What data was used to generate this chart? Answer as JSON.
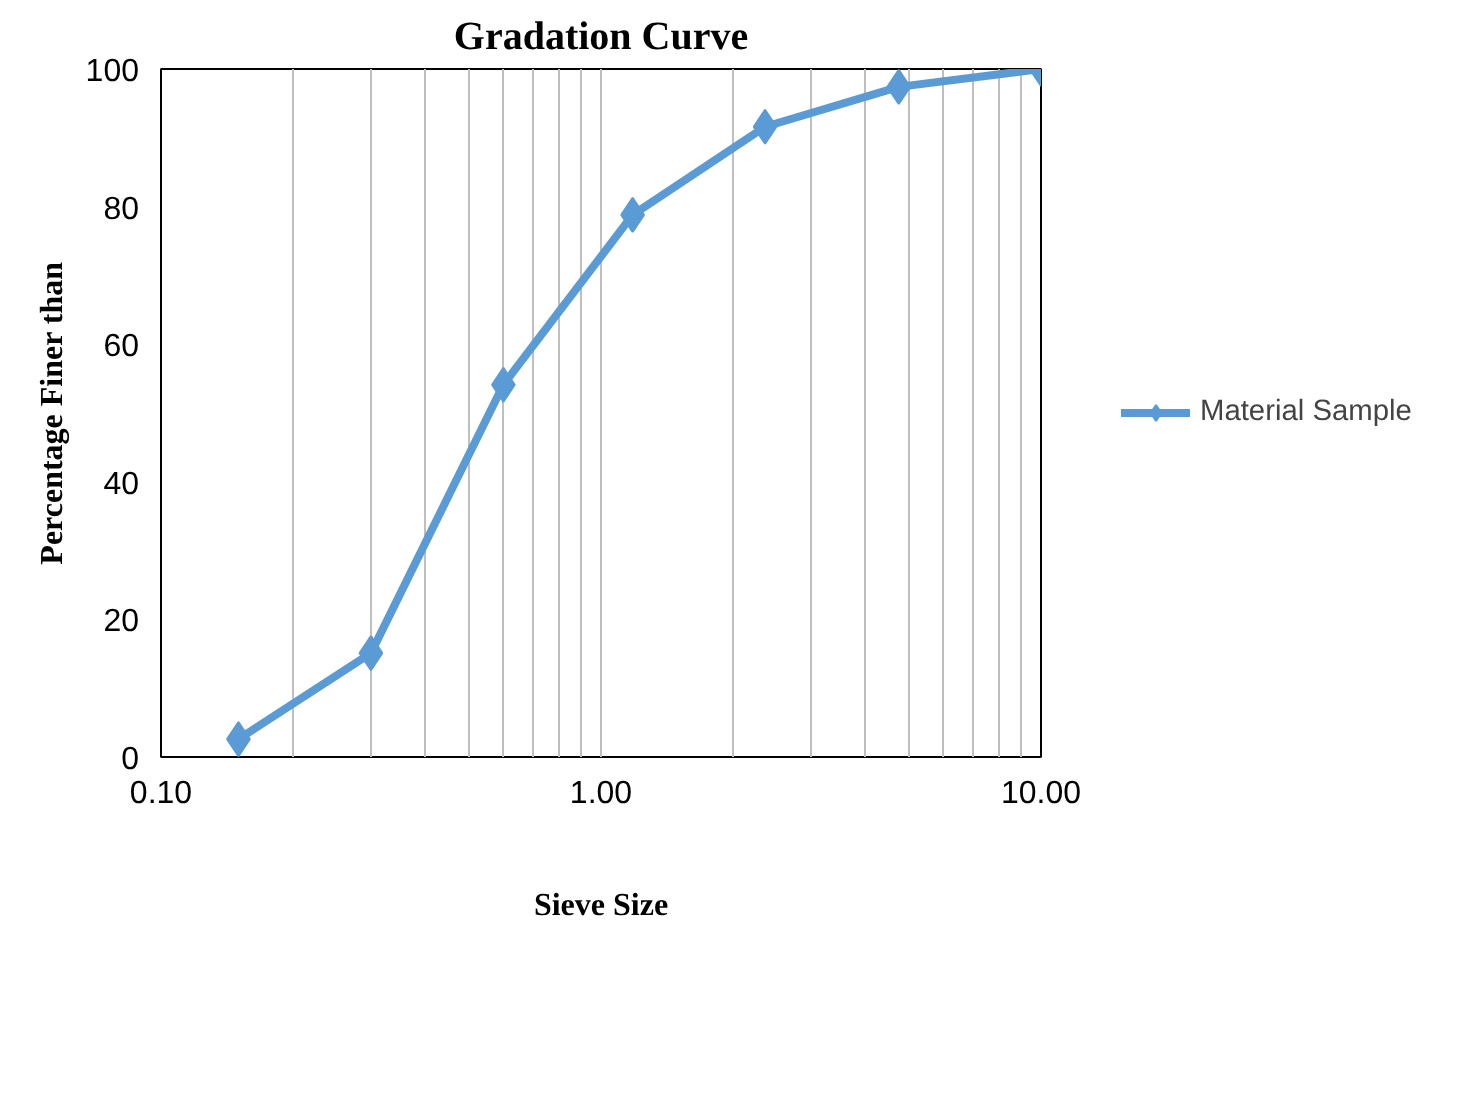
{
  "chart_data": {
    "type": "line",
    "title": "Gradation Curve",
    "xlabel": "Sieve Size",
    "ylabel": "Percentage Finer than",
    "log": "x",
    "xlim": [
      0.1,
      10
    ],
    "xticks": [
      {
        "value": 0.1,
        "label": "0.10"
      },
      {
        "value": 1,
        "label": "1.00"
      },
      {
        "value": 10,
        "label": "10.00"
      }
    ],
    "ylim": [
      0,
      100
    ],
    "yticks": [
      0,
      20,
      40,
      60,
      80,
      100
    ],
    "grid": "x",
    "legend": "right",
    "marker": "diamond",
    "line_style": "solid",
    "x": [
      0.15,
      0.3,
      0.6,
      1.18,
      2.36,
      4.75,
      10
    ],
    "series": [
      {
        "name": "Material Sample",
        "color": "#5b9bd5",
        "values": [
          2.6,
          15.1,
          54.1,
          78.8,
          91.6,
          97.4,
          100
        ]
      }
    ]
  }
}
